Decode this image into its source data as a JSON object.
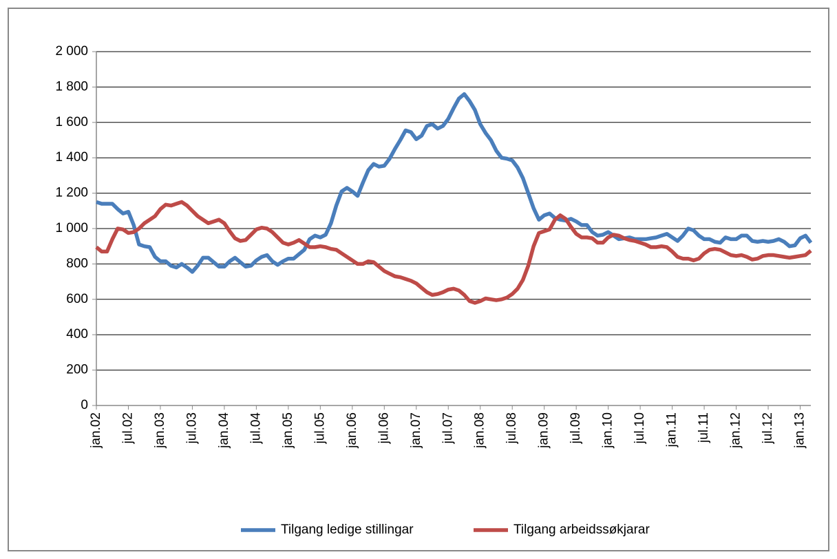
{
  "chart_data": {
    "type": "line",
    "categories": [
      "jan.02",
      null,
      null,
      null,
      null,
      null,
      "jul.02",
      null,
      null,
      null,
      null,
      null,
      "jan.03",
      null,
      null,
      null,
      null,
      null,
      "jul.03",
      null,
      null,
      null,
      null,
      null,
      "jan.04",
      null,
      null,
      null,
      null,
      null,
      "jul.04",
      null,
      null,
      null,
      null,
      null,
      "jan.05",
      null,
      null,
      null,
      null,
      null,
      "jul.05",
      null,
      null,
      null,
      null,
      null,
      "jan.06",
      null,
      null,
      null,
      null,
      null,
      "jul.06",
      null,
      null,
      null,
      null,
      null,
      "jan.07",
      null,
      null,
      null,
      null,
      null,
      "jul.07",
      null,
      null,
      null,
      null,
      null,
      "jan.08",
      null,
      null,
      null,
      null,
      null,
      "jul.08",
      null,
      null,
      null,
      null,
      null,
      "jan.09",
      null,
      null,
      null,
      null,
      null,
      "jul.09",
      null,
      null,
      null,
      null,
      null,
      "jan.10",
      null,
      null,
      null,
      null,
      null,
      "jul.10",
      null,
      null,
      null,
      null,
      null,
      "jan.11",
      null,
      null,
      null,
      null,
      null,
      "jul.11",
      null,
      null,
      null,
      null,
      null,
      "jan.12",
      null,
      null,
      null,
      null,
      null,
      "jul.12",
      null,
      null,
      null,
      null,
      null,
      "jan.13",
      null,
      null
    ],
    "series": [
      {
        "name": "Tilgang ledige stillingar",
        "color": "#4a7ebb",
        "values": [
          1150,
          1140,
          1140,
          1140,
          1110,
          1085,
          1095,
          1020,
          910,
          900,
          895,
          840,
          815,
          815,
          790,
          780,
          800,
          780,
          755,
          790,
          835,
          835,
          810,
          785,
          785,
          815,
          835,
          810,
          785,
          790,
          820,
          840,
          850,
          815,
          795,
          815,
          830,
          830,
          855,
          880,
          940,
          960,
          950,
          965,
          1030,
          1130,
          1210,
          1230,
          1210,
          1185,
          1260,
          1330,
          1365,
          1350,
          1355,
          1395,
          1450,
          1500,
          1555,
          1545,
          1505,
          1525,
          1580,
          1590,
          1565,
          1580,
          1620,
          1680,
          1735,
          1760,
          1720,
          1670,
          1590,
          1540,
          1500,
          1440,
          1400,
          1395,
          1385,
          1345,
          1285,
          1200,
          1115,
          1050,
          1075,
          1085,
          1060,
          1050,
          1045,
          1055,
          1040,
          1020,
          1020,
          980,
          960,
          965,
          980,
          960,
          940,
          945,
          950,
          940,
          940,
          940,
          945,
          950,
          960,
          970,
          950,
          930,
          960,
          1000,
          990,
          960,
          940,
          940,
          925,
          920,
          950,
          940,
          940,
          960,
          960,
          930,
          925,
          930,
          925,
          930,
          940,
          925,
          900,
          905,
          945,
          960,
          920
        ]
      },
      {
        "name": "Tilgang arbeidssøkjarar",
        "color": "#be4b48",
        "values": [
          895,
          870,
          870,
          940,
          1000,
          995,
          975,
          980,
          1000,
          1030,
          1050,
          1070,
          1110,
          1135,
          1130,
          1140,
          1150,
          1130,
          1100,
          1070,
          1050,
          1030,
          1040,
          1050,
          1030,
          985,
          945,
          930,
          935,
          965,
          995,
          1005,
          1000,
          980,
          950,
          920,
          910,
          920,
          935,
          915,
          895,
          895,
          900,
          895,
          885,
          880,
          860,
          840,
          820,
          800,
          800,
          815,
          810,
          785,
          760,
          745,
          730,
          725,
          715,
          705,
          690,
          665,
          640,
          625,
          630,
          640,
          655,
          660,
          650,
          625,
          590,
          580,
          590,
          605,
          600,
          595,
          600,
          610,
          630,
          660,
          710,
          790,
          900,
          975,
          985,
          995,
          1050,
          1075,
          1055,
          1010,
          970,
          950,
          950,
          945,
          920,
          920,
          950,
          965,
          960,
          945,
          935,
          930,
          920,
          910,
          895,
          895,
          900,
          895,
          870,
          840,
          830,
          830,
          820,
          830,
          860,
          880,
          885,
          880,
          865,
          850,
          845,
          850,
          840,
          825,
          830,
          845,
          850,
          850,
          845,
          840,
          835,
          840,
          845,
          850,
          875
        ]
      }
    ],
    "ylim": [
      0,
      2000
    ],
    "yticks": [
      0,
      200,
      400,
      600,
      800,
      {
        "value": 1000,
        "label": "1 000"
      },
      {
        "value": 1200,
        "label": "1 200"
      },
      {
        "value": 1400,
        "label": "1 400"
      },
      {
        "value": 1600,
        "label": "1 600"
      },
      {
        "value": 1800,
        "label": "1 800"
      },
      {
        "value": 2000,
        "label": "2 000"
      }
    ],
    "grid": true,
    "legend": "bottom"
  }
}
